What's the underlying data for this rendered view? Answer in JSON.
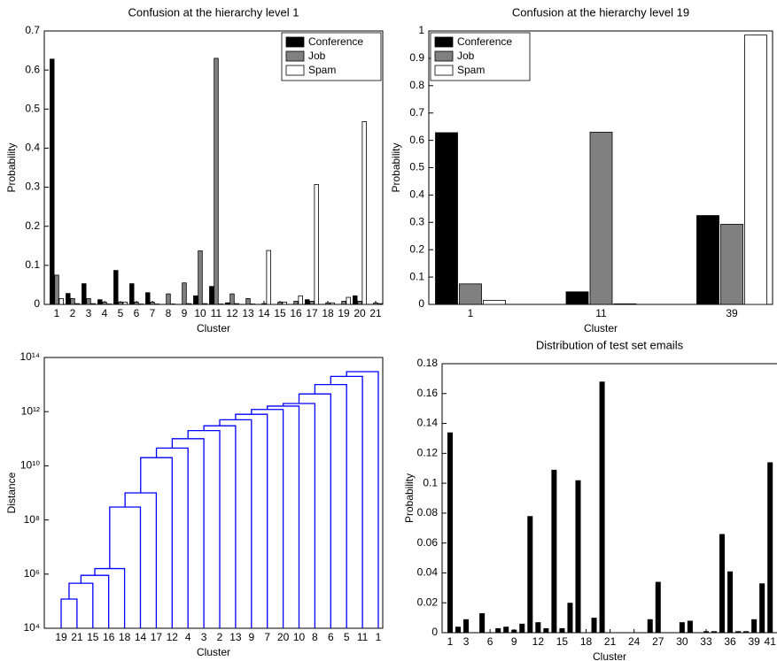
{
  "chart_data": [
    {
      "type": "bar",
      "title": "Confusion at the hierarchy level 1",
      "xlabel": "Cluster",
      "ylabel": "Probability",
      "categories": [
        "1",
        "2",
        "3",
        "4",
        "5",
        "6",
        "7",
        "8",
        "9",
        "10",
        "11",
        "12",
        "13",
        "14",
        "15",
        "16",
        "17",
        "18",
        "19",
        "20",
        "21"
      ],
      "series": [
        {
          "name": "Conference",
          "color": "#000000",
          "values": [
            0.628,
            0.028,
            0.053,
            0.012,
            0.087,
            0.053,
            0.03,
            0,
            0,
            0.022,
            0.046,
            0.004,
            0,
            0,
            0,
            0,
            0.012,
            0,
            0,
            0.022,
            0
          ]
        },
        {
          "name": "Job",
          "color": "#808080",
          "values": [
            0.075,
            0.015,
            0.015,
            0.006,
            0.006,
            0.006,
            0.006,
            0.027,
            0.055,
            0.137,
            0.63,
            0.027,
            0.015,
            0.002,
            0.006,
            0.008,
            0.008,
            0.004,
            0.008,
            0.008,
            0.004
          ]
        },
        {
          "name": "Spam",
          "color": "#ffffff",
          "values": [
            0.015,
            0.002,
            0.002,
            0.001,
            0.006,
            0.001,
            0.001,
            0.001,
            0.002,
            0.002,
            0.001,
            0.002,
            0.001,
            0.138,
            0.006,
            0.022,
            0.307,
            0.004,
            0.018,
            0.468,
            0.002
          ]
        }
      ],
      "ylim": [
        0,
        0.7
      ],
      "yticks": [
        0,
        0.1,
        0.2,
        0.3,
        0.4,
        0.5,
        0.6,
        0.7
      ],
      "legend": "upper right",
      "grid": false
    },
    {
      "type": "bar",
      "title": "Confusion at the hierarchy level 19",
      "xlabel": "Cluster",
      "ylabel": "Probability",
      "categories": [
        "1",
        "11",
        "39"
      ],
      "series": [
        {
          "name": "Conference",
          "color": "#000000",
          "values": [
            0.628,
            0.046,
            0.325
          ]
        },
        {
          "name": "Job",
          "color": "#808080",
          "values": [
            0.075,
            0.63,
            0.293
          ]
        },
        {
          "name": "Spam",
          "color": "#ffffff",
          "values": [
            0.015,
            0.002,
            0.985
          ]
        }
      ],
      "ylim": [
        0,
        1
      ],
      "yticks": [
        0,
        0.1,
        0.2,
        0.3,
        0.4,
        0.5,
        0.6,
        0.7,
        0.8,
        0.9,
        1
      ],
      "legend": "upper left",
      "grid": false
    },
    {
      "type": "dendrogram",
      "xlabel": "Cluster",
      "ylabel": "Distance",
      "color": "#0000ff",
      "leaves": [
        "19",
        "21",
        "15",
        "16",
        "18",
        "14",
        "17",
        "12",
        "4",
        "3",
        "2",
        "13",
        "9",
        "7",
        "20",
        "10",
        "8",
        "6",
        "5",
        "11",
        "1"
      ],
      "values": [
        120000,
        460000,
        900000,
        1600000,
        300000000,
        1000000000,
        20000000000,
        45000000000,
        100000000000,
        200000000000,
        300000000000,
        500000000000,
        800000000000,
        1200000000000,
        1600000000000,
        2000000000000,
        4500000000000,
        10000000000000,
        20000000000000,
        30000000000000
      ],
      "log_y": true,
      "ylim": [
        10000,
        100000000000000
      ],
      "yticks": [
        {
          "value": 10000,
          "label": "10⁴"
        },
        {
          "value": 1000000,
          "label": "10⁶"
        },
        {
          "value": 100000000,
          "label": "10⁸"
        },
        {
          "value": 10000000000,
          "label": "10¹⁰"
        },
        {
          "value": 1000000000000,
          "label": "10¹²"
        },
        {
          "value": 100000000000000,
          "label": "10¹⁴"
        }
      ]
    },
    {
      "type": "bar",
      "title": "Distribution of test set emails",
      "xlabel": "Cluster",
      "ylabel": "Probability",
      "color": "#000000",
      "categories": [
        "1",
        null,
        "3",
        null,
        null,
        "6",
        null,
        null,
        "9",
        null,
        null,
        "12",
        null,
        null,
        "15",
        null,
        null,
        "18",
        null,
        null,
        "21",
        null,
        null,
        "24",
        null,
        null,
        "27",
        null,
        null,
        "30",
        null,
        null,
        "33",
        null,
        null,
        "36",
        null,
        null,
        "39",
        null,
        "41"
      ],
      "values": [
        0.134,
        0.004,
        0.009,
        0,
        0.013,
        0,
        0.003,
        0.004,
        0.002,
        0.006,
        0.078,
        0.007,
        0.003,
        0.109,
        0.003,
        0.02,
        0.102,
        0,
        0.01,
        0.168,
        0,
        0,
        0,
        0,
        0,
        0.009,
        0.034,
        0,
        0,
        0.007,
        0.008,
        0,
        0.001,
        0.001,
        0.066,
        0.041,
        0.001,
        0.001,
        0.009,
        0.033,
        0.114
      ],
      "ylim": [
        0,
        0.18
      ],
      "yticks": [
        0,
        0.02,
        0.04,
        0.06,
        0.08,
        0.1,
        0.12,
        0.14,
        0.16,
        0.18
      ],
      "grid": false
    }
  ]
}
